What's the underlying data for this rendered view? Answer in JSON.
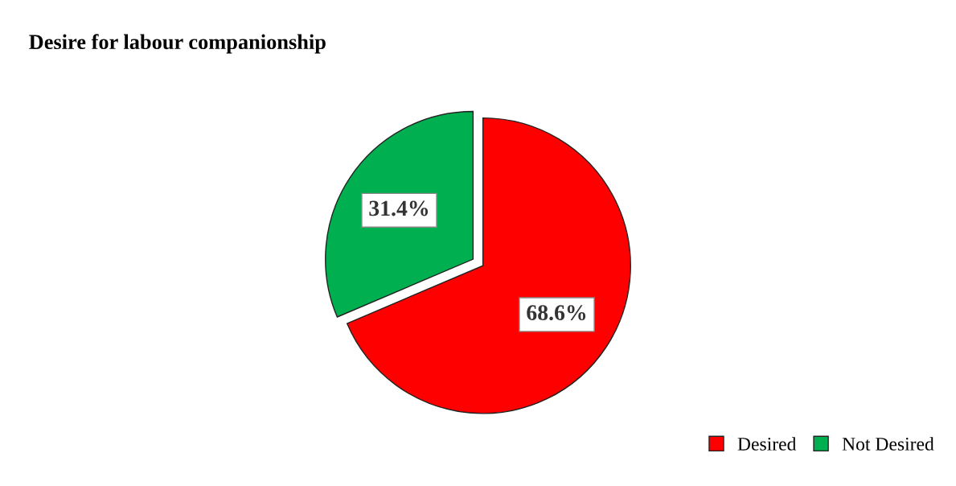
{
  "chart_data": {
    "type": "pie",
    "title": "Desire for labour companionship",
    "categories": [
      "Desired",
      "Not Desired"
    ],
    "values": [
      68.6,
      31.4
    ],
    "colors": [
      "#ff0000",
      "#00b050"
    ],
    "value_labels": [
      "68.6%",
      "31.4%"
    ],
    "legend": "bottom right"
  }
}
